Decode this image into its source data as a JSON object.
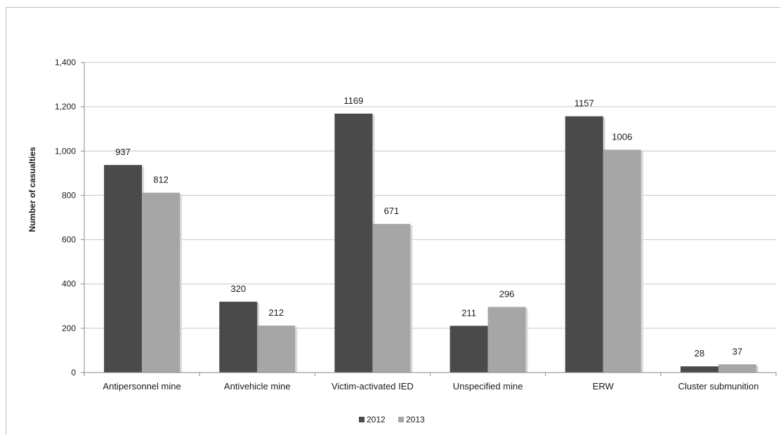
{
  "colors": {
    "series_2012": "#4a4a4a",
    "series_2013": "#a6a6a6",
    "gridline": "#c8c8c8",
    "axis": "#8a8a8a"
  },
  "chart_data": {
    "type": "bar",
    "title": "",
    "xlabel": "",
    "ylabel": "Number of casualties",
    "ylim": [
      0,
      1400
    ],
    "yticks": [
      0,
      200,
      400,
      600,
      800,
      1000,
      1200,
      1400
    ],
    "ytick_labels": [
      "0",
      "200",
      "400",
      "600",
      "800",
      "1,000",
      "1,200",
      "1,400"
    ],
    "grid": true,
    "legend_position": "bottom-center",
    "categories": [
      "Antipersonnel mine",
      "Antivehicle mine",
      "Victim-activated IED",
      "Unspecified mine",
      "ERW",
      "Cluster submunition"
    ],
    "series": [
      {
        "name": "2012",
        "values": [
          937,
          320,
          1169,
          211,
          1157,
          28
        ]
      },
      {
        "name": "2013",
        "values": [
          812,
          212,
          671,
          296,
          1006,
          37
        ]
      }
    ]
  }
}
